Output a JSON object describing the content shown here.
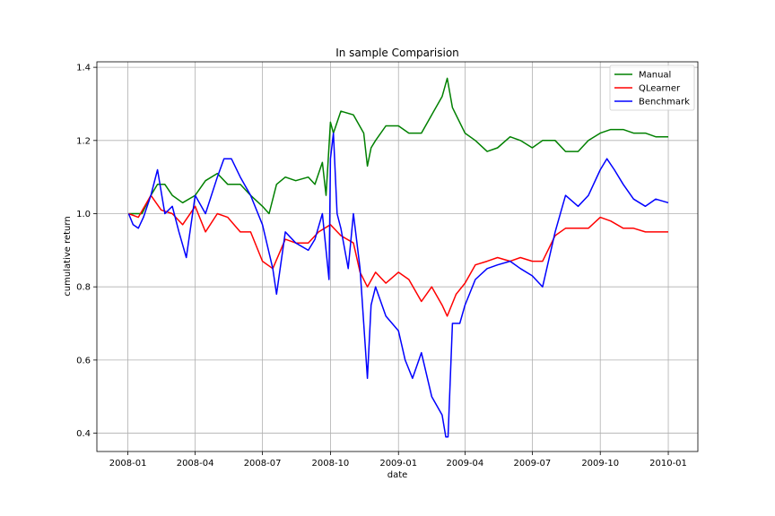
{
  "chart_data": {
    "type": "line",
    "title": "In sample Comparision",
    "xlabel": "date",
    "ylabel": "cumulative return",
    "grid": true,
    "legend_position": "top-right",
    "xlim": [
      "2007-11-20",
      "2010-02-10"
    ],
    "ylim": [
      0.35,
      1.415
    ],
    "x_ticks": [
      "2008-01",
      "2008-04",
      "2008-07",
      "2008-10",
      "2009-01",
      "2009-04",
      "2009-07",
      "2009-10",
      "2010-01"
    ],
    "y_ticks": [
      "0.4",
      "0.6",
      "0.8",
      "1.0",
      "1.2",
      "1.4"
    ],
    "series": [
      {
        "name": "Manual",
        "color": "#008000",
        "x": [
          "2008-01-02",
          "2008-01-20",
          "2008-02-01",
          "2008-02-10",
          "2008-02-20",
          "2008-03-01",
          "2008-03-15",
          "2008-04-01",
          "2008-04-15",
          "2008-05-01",
          "2008-05-15",
          "2008-06-01",
          "2008-06-15",
          "2008-07-01",
          "2008-07-10",
          "2008-07-20",
          "2008-08-01",
          "2008-08-15",
          "2008-09-01",
          "2008-09-10",
          "2008-09-20",
          "2008-09-25",
          "2008-10-01",
          "2008-10-05",
          "2008-10-15",
          "2008-11-01",
          "2008-11-15",
          "2008-11-20",
          "2008-11-25",
          "2008-12-01",
          "2008-12-15",
          "2009-01-01",
          "2009-01-15",
          "2009-02-01",
          "2009-02-15",
          "2009-03-01",
          "2009-03-08",
          "2009-03-15",
          "2009-04-01",
          "2009-04-15",
          "2009-05-01",
          "2009-05-15",
          "2009-06-01",
          "2009-06-15",
          "2009-07-01",
          "2009-07-15",
          "2009-08-01",
          "2009-08-15",
          "2009-09-01",
          "2009-09-15",
          "2009-10-01",
          "2009-10-15",
          "2009-11-01",
          "2009-11-15",
          "2009-12-01",
          "2009-12-15",
          "2010-01-01"
        ],
        "y": [
          1.0,
          1.0,
          1.05,
          1.08,
          1.08,
          1.05,
          1.03,
          1.05,
          1.09,
          1.11,
          1.08,
          1.08,
          1.05,
          1.02,
          1.0,
          1.08,
          1.1,
          1.09,
          1.1,
          1.08,
          1.14,
          1.05,
          1.25,
          1.22,
          1.28,
          1.27,
          1.22,
          1.13,
          1.18,
          1.2,
          1.24,
          1.24,
          1.22,
          1.22,
          1.27,
          1.32,
          1.37,
          1.29,
          1.22,
          1.2,
          1.17,
          1.18,
          1.21,
          1.2,
          1.18,
          1.2,
          1.2,
          1.17,
          1.17,
          1.2,
          1.22,
          1.23,
          1.23,
          1.22,
          1.22,
          1.21,
          1.21
        ]
      },
      {
        "name": "QLearner",
        "color": "#ff0000",
        "x": [
          "2008-01-02",
          "2008-01-15",
          "2008-02-01",
          "2008-02-15",
          "2008-03-01",
          "2008-03-15",
          "2008-04-01",
          "2008-04-15",
          "2008-05-01",
          "2008-05-15",
          "2008-06-01",
          "2008-06-15",
          "2008-07-01",
          "2008-07-15",
          "2008-08-01",
          "2008-08-15",
          "2008-09-01",
          "2008-09-15",
          "2008-10-01",
          "2008-10-15",
          "2008-11-01",
          "2008-11-10",
          "2008-11-20",
          "2008-12-01",
          "2008-12-15",
          "2009-01-01",
          "2009-01-15",
          "2009-02-01",
          "2009-02-15",
          "2009-03-01",
          "2009-03-08",
          "2009-03-20",
          "2009-04-01",
          "2009-04-15",
          "2009-05-01",
          "2009-05-15",
          "2009-06-01",
          "2009-06-15",
          "2009-07-01",
          "2009-07-15",
          "2009-08-01",
          "2009-08-15",
          "2009-09-01",
          "2009-09-15",
          "2009-10-01",
          "2009-10-15",
          "2009-11-01",
          "2009-11-15",
          "2009-12-01",
          "2009-12-15",
          "2010-01-01"
        ],
        "y": [
          1.0,
          0.99,
          1.05,
          1.01,
          1.0,
          0.97,
          1.02,
          0.95,
          1.0,
          0.99,
          0.95,
          0.95,
          0.87,
          0.85,
          0.93,
          0.92,
          0.92,
          0.95,
          0.97,
          0.94,
          0.92,
          0.84,
          0.8,
          0.84,
          0.81,
          0.84,
          0.82,
          0.76,
          0.8,
          0.75,
          0.72,
          0.78,
          0.81,
          0.86,
          0.87,
          0.88,
          0.87,
          0.88,
          0.87,
          0.87,
          0.94,
          0.96,
          0.96,
          0.96,
          0.99,
          0.98,
          0.96,
          0.96,
          0.95,
          0.95,
          0.95
        ]
      },
      {
        "name": "Benchmark",
        "color": "#0000ff",
        "x": [
          "2008-01-02",
          "2008-01-08",
          "2008-01-15",
          "2008-01-22",
          "2008-02-01",
          "2008-02-10",
          "2008-02-20",
          "2008-03-01",
          "2008-03-10",
          "2008-03-20",
          "2008-04-01",
          "2008-04-15",
          "2008-05-01",
          "2008-05-10",
          "2008-05-20",
          "2008-06-01",
          "2008-06-15",
          "2008-07-01",
          "2008-07-15",
          "2008-07-20",
          "2008-08-01",
          "2008-08-15",
          "2008-09-01",
          "2008-09-10",
          "2008-09-20",
          "2008-09-29",
          "2008-10-01",
          "2008-10-05",
          "2008-10-10",
          "2008-10-15",
          "2008-10-25",
          "2008-11-01",
          "2008-11-10",
          "2008-11-20",
          "2008-11-25",
          "2008-12-01",
          "2008-12-15",
          "2009-01-01",
          "2009-01-10",
          "2009-01-20",
          "2009-02-01",
          "2009-02-15",
          "2009-03-01",
          "2009-03-06",
          "2009-03-09",
          "2009-03-15",
          "2009-03-25",
          "2009-04-01",
          "2009-04-15",
          "2009-05-01",
          "2009-05-15",
          "2009-06-01",
          "2009-06-15",
          "2009-07-01",
          "2009-07-15",
          "2009-08-01",
          "2009-08-15",
          "2009-09-01",
          "2009-09-15",
          "2009-10-01",
          "2009-10-10",
          "2009-10-20",
          "2009-11-01",
          "2009-11-15",
          "2009-12-01",
          "2009-12-15",
          "2010-01-01"
        ],
        "y": [
          1.0,
          0.97,
          0.96,
          0.99,
          1.05,
          1.12,
          1.0,
          1.02,
          0.95,
          0.88,
          1.05,
          1.0,
          1.1,
          1.15,
          1.15,
          1.1,
          1.05,
          0.97,
          0.85,
          0.78,
          0.95,
          0.92,
          0.9,
          0.93,
          1.0,
          0.82,
          1.15,
          1.22,
          1.0,
          0.96,
          0.85,
          1.0,
          0.85,
          0.55,
          0.75,
          0.8,
          0.72,
          0.68,
          0.6,
          0.55,
          0.62,
          0.5,
          0.45,
          0.39,
          0.39,
          0.7,
          0.7,
          0.75,
          0.82,
          0.85,
          0.86,
          0.87,
          0.85,
          0.83,
          0.8,
          0.95,
          1.05,
          1.02,
          1.05,
          1.12,
          1.15,
          1.12,
          1.08,
          1.04,
          1.02,
          1.04,
          1.03
        ]
      }
    ]
  }
}
